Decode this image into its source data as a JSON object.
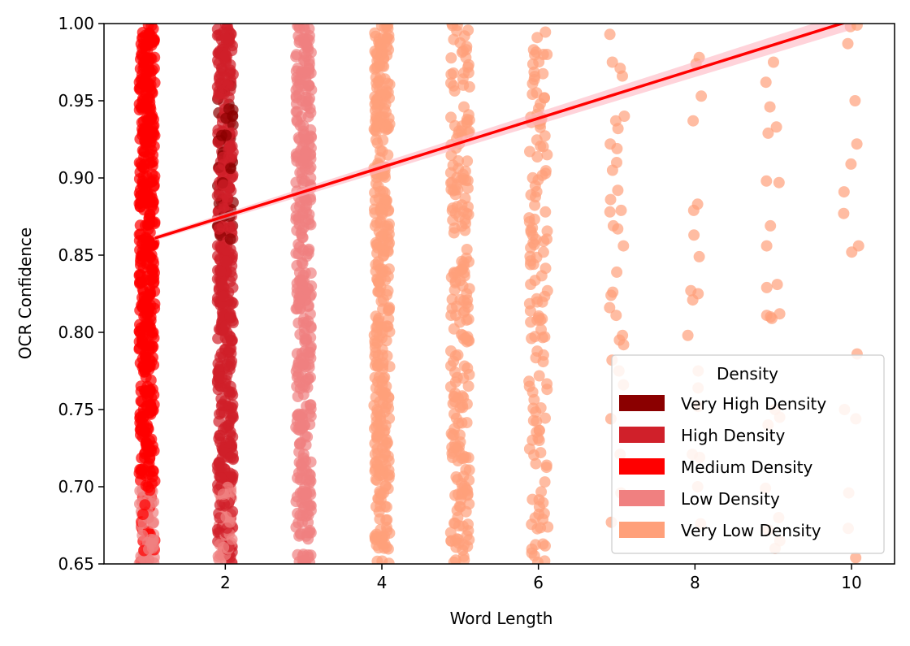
{
  "chart_data": {
    "type": "scatter",
    "xlabel": "Word Length",
    "ylabel": "OCR Confidence",
    "xlim": [
      0.45,
      10.55
    ],
    "ylim": [
      0.65,
      1.0
    ],
    "x_ticks": [
      2,
      4,
      6,
      8,
      10
    ],
    "x_tick_labels": [
      "2",
      "4",
      "6",
      "8",
      "10"
    ],
    "y_ticks": [
      0.65,
      0.7,
      0.75,
      0.8,
      0.85,
      0.9,
      0.95,
      1.0
    ],
    "y_tick_labels": [
      "0.65",
      "0.70",
      "0.75",
      "0.80",
      "0.85",
      "0.90",
      "0.95",
      "1.00"
    ],
    "grid": false,
    "legend": {
      "title": "Density",
      "placement": "lower-right",
      "entries": [
        {
          "label": "Very High Density",
          "color": "#8b0000"
        },
        {
          "label": "High Density",
          "color": "#d0202a"
        },
        {
          "label": "Medium Density",
          "color": "#ff0000"
        },
        {
          "label": "Low Density",
          "color": "#f08080"
        },
        {
          "label": "Very Low Density",
          "color": "#ffa07a"
        }
      ]
    },
    "columns": [
      {
        "x": 1,
        "density": "Medium Density",
        "bottom_density": "Low Density",
        "spread": 0.1
      },
      {
        "x": 2,
        "density": "High Density",
        "core_density": "Very High Density",
        "bottom_density": "Low Density",
        "spread": 0.1
      },
      {
        "x": 3,
        "density": "Low Density",
        "spread": 0.1
      },
      {
        "x": 4,
        "density": "Very Low Density",
        "spread": 0.1
      },
      {
        "x": 5,
        "density": "Very Low Density",
        "spread": 0.12
      },
      {
        "x": 6,
        "density": "Very Low Density",
        "spread": 0.12
      },
      {
        "x": 7,
        "density": "Very Low Density",
        "spread": 0.1
      },
      {
        "x": 8,
        "density": "Very Low Density",
        "spread": 0.1
      },
      {
        "x": 9,
        "density": "Very Low Density",
        "spread": 0.1
      },
      {
        "x": 10,
        "density": "Very Low Density",
        "spread": 0.1
      }
    ],
    "sparse_points": {
      "7": [
        0.993,
        0.975,
        0.971,
        0.966,
        0.94,
        0.937,
        0.932,
        0.922,
        0.919,
        0.91,
        0.905,
        0.892,
        0.886,
        0.879,
        0.878,
        0.869,
        0.867,
        0.856,
        0.839,
        0.826,
        0.824,
        0.816,
        0.811,
        0.798,
        0.795,
        0.792,
        0.782,
        0.775,
        0.766,
        0.744,
        0.721,
        0.696,
        0.677
      ],
      "8": [
        0.978,
        0.974,
        0.953,
        0.937,
        0.883,
        0.879,
        0.863,
        0.849,
        0.827,
        0.825,
        0.821,
        0.798,
        0.775,
        0.764,
        0.752,
        0.721,
        0.719,
        0.7,
        0.676
      ],
      "9": [
        0.975,
        0.962,
        0.946,
        0.933,
        0.929,
        0.898,
        0.897,
        0.869,
        0.856,
        0.831,
        0.829,
        0.812,
        0.811,
        0.81,
        0.809,
        0.75,
        0.745,
        0.74,
        0.699,
        0.68,
        0.672,
        0.665,
        0.66
      ],
      "10": [
        0.999,
        0.998,
        0.987,
        0.95,
        0.922,
        0.909,
        0.891,
        0.877,
        0.856,
        0.852,
        0.786,
        0.75,
        0.744,
        0.696,
        0.673,
        0.654
      ]
    },
    "regression": {
      "x_start": 1.1,
      "x_end": 10.0,
      "y_start": 0.861,
      "y_end": 1.002,
      "color": "#ff0000",
      "band_color": "#ffb6c1"
    }
  }
}
